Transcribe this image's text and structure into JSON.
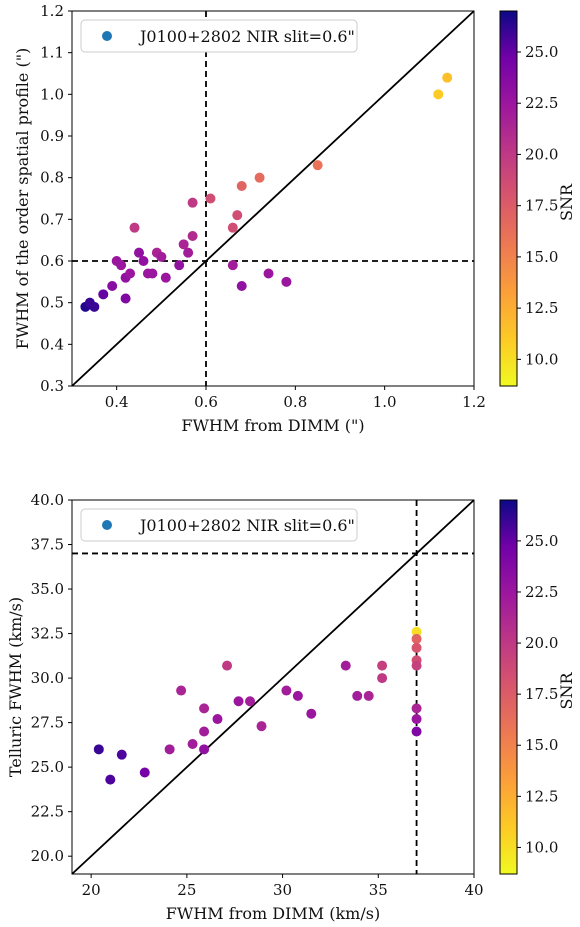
{
  "chart_data": [
    {
      "type": "scatter",
      "xlabel": "FWHM from DIMM (\")",
      "ylabel": "FWHM of the order spatial profile (\")",
      "xlim": [
        0.3,
        1.2
      ],
      "ylim": [
        0.3,
        1.2
      ],
      "xticks": [
        "0.4",
        "0.6",
        "0.8",
        "1.0",
        "1.2"
      ],
      "yticks": [
        "0.3",
        "0.4",
        "0.5",
        "0.6",
        "0.7",
        "0.8",
        "0.9",
        "1.0",
        "1.1",
        "1.2"
      ],
      "reference_lines": {
        "diagonal": "y = x",
        "vertical_dashed_x": 0.6,
        "horizontal_dashed_y": 0.6
      },
      "legend": {
        "label": "J0100+2802 NIR slit=0.6\"",
        "marker_color": "#1f77b4",
        "position": "top-left"
      },
      "colorbar": {
        "label": "SNR",
        "ticks": [
          "10.0",
          "12.5",
          "15.0",
          "17.5",
          "20.0",
          "22.5",
          "25.0"
        ],
        "min": 8.7,
        "max": 27.0,
        "colormap": "plasma"
      },
      "points": [
        {
          "x": 0.33,
          "y": 0.49,
          "snr": 26.5
        },
        {
          "x": 0.34,
          "y": 0.5,
          "snr": 26.0
        },
        {
          "x": 0.35,
          "y": 0.49,
          "snr": 26.0
        },
        {
          "x": 0.37,
          "y": 0.52,
          "snr": 25.0
        },
        {
          "x": 0.39,
          "y": 0.54,
          "snr": 23.5
        },
        {
          "x": 0.4,
          "y": 0.6,
          "snr": 22.5
        },
        {
          "x": 0.41,
          "y": 0.59,
          "snr": 22.5
        },
        {
          "x": 0.42,
          "y": 0.51,
          "snr": 24.0
        },
        {
          "x": 0.42,
          "y": 0.56,
          "snr": 23.0
        },
        {
          "x": 0.43,
          "y": 0.57,
          "snr": 22.5
        },
        {
          "x": 0.44,
          "y": 0.68,
          "snr": 20.0
        },
        {
          "x": 0.45,
          "y": 0.62,
          "snr": 23.0
        },
        {
          "x": 0.46,
          "y": 0.6,
          "snr": 23.0
        },
        {
          "x": 0.47,
          "y": 0.57,
          "snr": 22.5
        },
        {
          "x": 0.48,
          "y": 0.57,
          "snr": 22.5
        },
        {
          "x": 0.49,
          "y": 0.62,
          "snr": 21.5
        },
        {
          "x": 0.5,
          "y": 0.61,
          "snr": 22.0
        },
        {
          "x": 0.51,
          "y": 0.56,
          "snr": 22.5
        },
        {
          "x": 0.54,
          "y": 0.59,
          "snr": 23.0
        },
        {
          "x": 0.55,
          "y": 0.64,
          "snr": 21.5
        },
        {
          "x": 0.56,
          "y": 0.62,
          "snr": 22.0
        },
        {
          "x": 0.57,
          "y": 0.66,
          "snr": 21.0
        },
        {
          "x": 0.57,
          "y": 0.74,
          "snr": 20.0
        },
        {
          "x": 0.61,
          "y": 0.75,
          "snr": 18.5
        },
        {
          "x": 0.66,
          "y": 0.68,
          "snr": 18.5
        },
        {
          "x": 0.66,
          "y": 0.59,
          "snr": 22.0
        },
        {
          "x": 0.67,
          "y": 0.71,
          "snr": 18.5
        },
        {
          "x": 0.68,
          "y": 0.78,
          "snr": 17.0
        },
        {
          "x": 0.68,
          "y": 0.54,
          "snr": 23.0
        },
        {
          "x": 0.72,
          "y": 0.8,
          "snr": 16.5
        },
        {
          "x": 0.74,
          "y": 0.57,
          "snr": 22.5
        },
        {
          "x": 0.78,
          "y": 0.55,
          "snr": 22.5
        },
        {
          "x": 0.85,
          "y": 0.83,
          "snr": 16.0
        },
        {
          "x": 1.12,
          "y": 1.0,
          "snr": 11.0
        },
        {
          "x": 1.14,
          "y": 1.04,
          "snr": 11.5
        }
      ]
    },
    {
      "type": "scatter",
      "xlabel": "FWHM from DIMM (km/s)",
      "ylabel": "Telluric FWHM (km/s)",
      "xlim": [
        19,
        40
      ],
      "ylim": [
        19,
        40
      ],
      "xticks": [
        "20",
        "25",
        "30",
        "35",
        "40"
      ],
      "yticks": [
        "20.0",
        "22.5",
        "25.0",
        "27.5",
        "30.0",
        "32.5",
        "35.0",
        "37.5",
        "40.0"
      ],
      "reference_lines": {
        "diagonal": "y = x",
        "vertical_dashed_x": 37.0,
        "horizontal_dashed_y": 37.0
      },
      "legend": {
        "label": "J0100+2802 NIR slit=0.6\"",
        "marker_color": "#1f77b4",
        "position": "top-left"
      },
      "colorbar": {
        "label": "SNR",
        "ticks": [
          "10.0",
          "12.5",
          "15.0",
          "17.5",
          "20.0",
          "22.5",
          "25.0"
        ],
        "min": 8.7,
        "max": 27.0,
        "colormap": "plasma"
      },
      "points": [
        {
          "x": 20.4,
          "y": 26.0,
          "snr": 26.0
        },
        {
          "x": 21.0,
          "y": 24.3,
          "snr": 25.5
        },
        {
          "x": 21.6,
          "y": 25.7,
          "snr": 25.5
        },
        {
          "x": 22.8,
          "y": 24.7,
          "snr": 24.5
        },
        {
          "x": 24.1,
          "y": 26.0,
          "snr": 22.0
        },
        {
          "x": 24.7,
          "y": 29.3,
          "snr": 21.5
        },
        {
          "x": 25.3,
          "y": 26.3,
          "snr": 22.0
        },
        {
          "x": 25.9,
          "y": 26.0,
          "snr": 23.0
        },
        {
          "x": 25.9,
          "y": 27.0,
          "snr": 22.0
        },
        {
          "x": 25.9,
          "y": 28.3,
          "snr": 21.5
        },
        {
          "x": 26.6,
          "y": 27.7,
          "snr": 22.5
        },
        {
          "x": 27.1,
          "y": 30.7,
          "snr": 20.0
        },
        {
          "x": 27.7,
          "y": 28.7,
          "snr": 22.5
        },
        {
          "x": 28.3,
          "y": 28.7,
          "snr": 22.0
        },
        {
          "x": 28.9,
          "y": 27.3,
          "snr": 21.5
        },
        {
          "x": 30.2,
          "y": 29.3,
          "snr": 22.0
        },
        {
          "x": 30.8,
          "y": 29.0,
          "snr": 22.5
        },
        {
          "x": 31.5,
          "y": 28.0,
          "snr": 22.5
        },
        {
          "x": 33.3,
          "y": 30.7,
          "snr": 22.0
        },
        {
          "x": 33.9,
          "y": 29.0,
          "snr": 22.0
        },
        {
          "x": 34.5,
          "y": 29.0,
          "snr": 21.5
        },
        {
          "x": 35.2,
          "y": 30.0,
          "snr": 20.0
        },
        {
          "x": 35.2,
          "y": 30.7,
          "snr": 19.5
        },
        {
          "x": 37.0,
          "y": 32.6,
          "snr": 10.0
        },
        {
          "x": 37.0,
          "y": 32.2,
          "snr": 17.0
        },
        {
          "x": 37.0,
          "y": 31.7,
          "snr": 18.0
        },
        {
          "x": 37.0,
          "y": 31.0,
          "snr": 18.5
        },
        {
          "x": 37.0,
          "y": 30.7,
          "snr": 19.5
        },
        {
          "x": 37.0,
          "y": 28.3,
          "snr": 21.5
        },
        {
          "x": 37.0,
          "y": 27.7,
          "snr": 22.5
        },
        {
          "x": 37.0,
          "y": 27.0,
          "snr": 24.0
        }
      ]
    }
  ]
}
